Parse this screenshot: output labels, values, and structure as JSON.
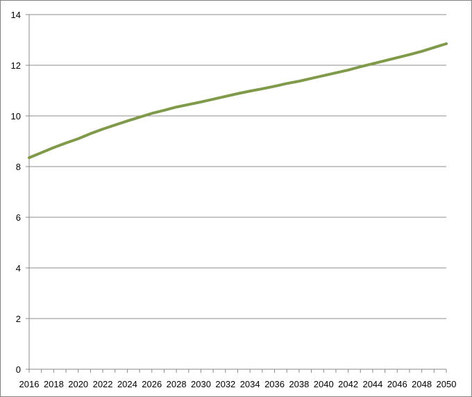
{
  "chart_data": {
    "type": "line",
    "title": "",
    "xlabel": "",
    "ylabel": "",
    "xlim": [
      2016,
      2050
    ],
    "ylim": [
      0,
      14
    ],
    "y_ticks": [
      0,
      2,
      4,
      6,
      8,
      10,
      12,
      14
    ],
    "x_tick_labels": [
      "2016",
      "2018",
      "2020",
      "2022",
      "2024",
      "2026",
      "2028",
      "2030",
      "2032",
      "2034",
      "2036",
      "2038",
      "2040",
      "2042",
      "2044",
      "2046",
      "2048",
      "2050"
    ],
    "grid": "horizontal",
    "legend": "none",
    "series": [
      {
        "color": "#7f9a48",
        "x": [
          2016,
          2017,
          2018,
          2019,
          2020,
          2021,
          2022,
          2023,
          2024,
          2025,
          2026,
          2027,
          2028,
          2029,
          2030,
          2031,
          2032,
          2033,
          2034,
          2035,
          2036,
          2037,
          2038,
          2039,
          2040,
          2041,
          2042,
          2043,
          2044,
          2045,
          2046,
          2047,
          2048,
          2049,
          2050
        ],
        "y": [
          8.35,
          8.55,
          8.75,
          8.93,
          9.1,
          9.3,
          9.48,
          9.64,
          9.8,
          9.95,
          10.1,
          10.22,
          10.35,
          10.45,
          10.55,
          10.66,
          10.77,
          10.88,
          10.98,
          11.07,
          11.17,
          11.28,
          11.37,
          11.48,
          11.59,
          11.7,
          11.81,
          11.94,
          12.06,
          12.18,
          12.3,
          12.42,
          12.55,
          12.7,
          12.85
        ]
      }
    ]
  }
}
